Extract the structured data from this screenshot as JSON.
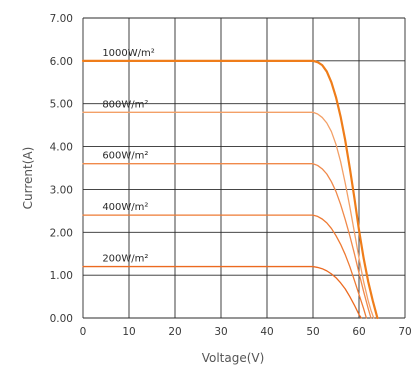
{
  "colors": {
    "background": "#ffffff",
    "grid": "#2b2b2b",
    "text": "#3a3a3a",
    "axis_title": "#555555"
  },
  "chart_data": {
    "type": "line",
    "title": "",
    "xlabel": "Voltage(V)",
    "ylabel": "Current(A)",
    "xlim": [
      0,
      70
    ],
    "ylim": [
      0,
      7
    ],
    "grid": true,
    "x_ticks": [
      "0",
      "10",
      "20",
      "30",
      "40",
      "50",
      "60",
      "70"
    ],
    "y_ticks": [
      "0.00",
      "1.00",
      "2.00",
      "3.00",
      "4.00",
      "5.00",
      "6.00",
      "7.00"
    ],
    "series": [
      {
        "name": "1000W/m²",
        "color": "#ef7d1a",
        "isc": 6.0,
        "x": [
          0,
          50,
          51,
          52,
          53,
          54,
          55,
          56,
          57,
          58,
          59,
          60,
          61,
          62,
          63,
          63.5,
          64
        ],
        "y": [
          6.0,
          6.0,
          5.97,
          5.9,
          5.75,
          5.5,
          5.15,
          4.7,
          4.15,
          3.5,
          2.8,
          2.05,
          1.4,
          0.85,
          0.4,
          0.2,
          0
        ]
      },
      {
        "name": "800W/m²",
        "color": "#f3a067",
        "isc": 4.8,
        "x": [
          0,
          50,
          51,
          52,
          53,
          54,
          55,
          56,
          57,
          58,
          59,
          60,
          61,
          62,
          62.6,
          63.2
        ],
        "y": [
          4.8,
          4.8,
          4.76,
          4.68,
          4.55,
          4.35,
          4.05,
          3.65,
          3.15,
          2.6,
          2.0,
          1.4,
          0.85,
          0.4,
          0.18,
          0
        ]
      },
      {
        "name": "600W/m²",
        "color": "#f0894a",
        "isc": 3.6,
        "x": [
          0,
          50,
          51,
          52,
          53,
          54,
          55,
          56,
          57,
          58,
          59,
          60,
          61,
          62,
          62.6
        ],
        "y": [
          3.6,
          3.6,
          3.56,
          3.48,
          3.36,
          3.18,
          2.95,
          2.65,
          2.3,
          1.92,
          1.5,
          1.05,
          0.62,
          0.22,
          0
        ]
      },
      {
        "name": "400W/m²",
        "color": "#ee7a33",
        "isc": 2.4,
        "x": [
          0,
          50,
          51,
          52,
          53,
          54,
          55,
          56,
          57,
          58,
          59,
          60,
          61,
          61.6
        ],
        "y": [
          2.4,
          2.4,
          2.37,
          2.31,
          2.22,
          2.09,
          1.92,
          1.72,
          1.48,
          1.2,
          0.88,
          0.55,
          0.22,
          0
        ]
      },
      {
        "name": "200W/m²",
        "color": "#ec6a20",
        "isc": 1.2,
        "x": [
          0,
          50,
          51,
          52,
          53,
          54,
          55,
          56,
          57,
          58,
          59,
          60,
          60.5
        ],
        "y": [
          1.2,
          1.2,
          1.18,
          1.15,
          1.1,
          1.03,
          0.94,
          0.82,
          0.68,
          0.5,
          0.3,
          0.08,
          0
        ]
      }
    ]
  }
}
